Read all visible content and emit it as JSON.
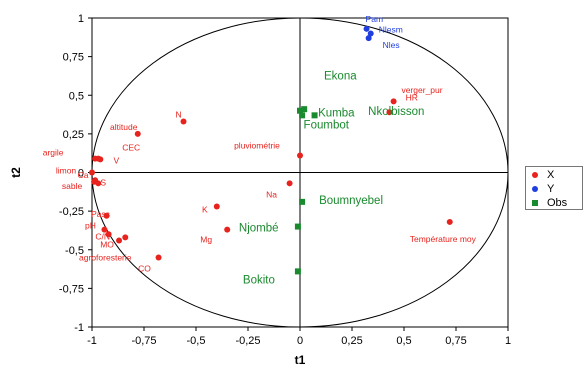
{
  "chart_data": {
    "type": "scatter",
    "title": "",
    "xlabel": "t1",
    "ylabel": "t2",
    "xlim": [
      -1,
      1
    ],
    "ylim": [
      -1,
      1
    ],
    "xticks": [
      "-1",
      "-0,75",
      "-0,5",
      "-0,25",
      "0",
      "0,25",
      "0,5",
      "0,75",
      "1"
    ],
    "yticks": [
      "1",
      "0,75",
      "0,5",
      "0,25",
      "0",
      "-0,25",
      "-0,5",
      "-0,75",
      "-1"
    ],
    "xtick_values": [
      -1,
      -0.75,
      -0.5,
      -0.25,
      0,
      0.25,
      0.5,
      0.75,
      1
    ],
    "ytick_values": [
      1,
      0.75,
      0.5,
      0.25,
      0,
      -0.25,
      -0.5,
      -0.75,
      -1
    ],
    "unit_circle": true,
    "legend_position": "right",
    "series": [
      {
        "name": "X",
        "color": "#e8231e",
        "marker": "circle",
        "points": [
          {
            "label": "altitude",
            "x": -0.78,
            "y": 0.25
          },
          {
            "label": "N",
            "x": -0.56,
            "y": 0.33
          },
          {
            "label": "argile",
            "x": -0.985,
            "y": 0.09
          },
          {
            "label": "CEC",
            "x": -0.97,
            "y": 0.09
          },
          {
            "label": "V",
            "x": -0.96,
            "y": 0.085
          },
          {
            "label": "limon",
            "x": -1.0,
            "y": 0.0
          },
          {
            "label": "Ca",
            "x": -0.985,
            "y": -0.05
          },
          {
            "label": "sable",
            "x": -0.99,
            "y": -0.06
          },
          {
            "label": "S",
            "x": -0.97,
            "y": -0.07
          },
          {
            "label": "Pass",
            "x": -0.93,
            "y": -0.28
          },
          {
            "label": "pH",
            "x": -0.94,
            "y": -0.37
          },
          {
            "label": "C/N",
            "x": -0.92,
            "y": -0.4
          },
          {
            "label": "MO",
            "x": -0.87,
            "y": -0.44
          },
          {
            "label": "agroforesterie",
            "x": -0.84,
            "y": -0.42
          },
          {
            "label": "CO",
            "x": -0.68,
            "y": -0.55
          },
          {
            "label": "K",
            "x": -0.4,
            "y": -0.22
          },
          {
            "label": "Mg",
            "x": -0.35,
            "y": -0.37
          },
          {
            "label": "Na",
            "x": -0.05,
            "y": -0.07
          },
          {
            "label": "pluviométrie",
            "x": 0.0,
            "y": 0.11
          },
          {
            "label": "HR",
            "x": 0.45,
            "y": 0.46
          },
          {
            "label": "verger_pur",
            "x": 0.43,
            "y": 0.39
          },
          {
            "label": "Température moy",
            "x": 0.72,
            "y": -0.32
          }
        ]
      },
      {
        "name": "Y",
        "color": "#1f3ee0",
        "marker": "circle",
        "points": [
          {
            "label": "Pam",
            "x": 0.32,
            "y": 0.93
          },
          {
            "label": "Nlesm",
            "x": 0.34,
            "y": 0.9
          },
          {
            "label": "Nles",
            "x": 0.33,
            "y": 0.87
          }
        ]
      },
      {
        "name": "Obs",
        "color": "#1a8a2e",
        "marker": "square",
        "points": [
          {
            "label": "Ekona",
            "x": 0.0,
            "y": 0.4
          },
          {
            "label": "Kumba",
            "x": 0.01,
            "y": 0.37
          },
          {
            "label": "Foumbot",
            "x": 0.07,
            "y": 0.37
          },
          {
            "label": "Nkolbisson",
            "x": 0.02,
            "y": 0.41
          },
          {
            "label": "Boumnyebel",
            "x": 0.01,
            "y": -0.19
          },
          {
            "label": "Njombé",
            "x": -0.01,
            "y": -0.35
          },
          {
            "label": "Bokito",
            "x": -0.01,
            "y": -0.64
          }
        ]
      }
    ]
  }
}
